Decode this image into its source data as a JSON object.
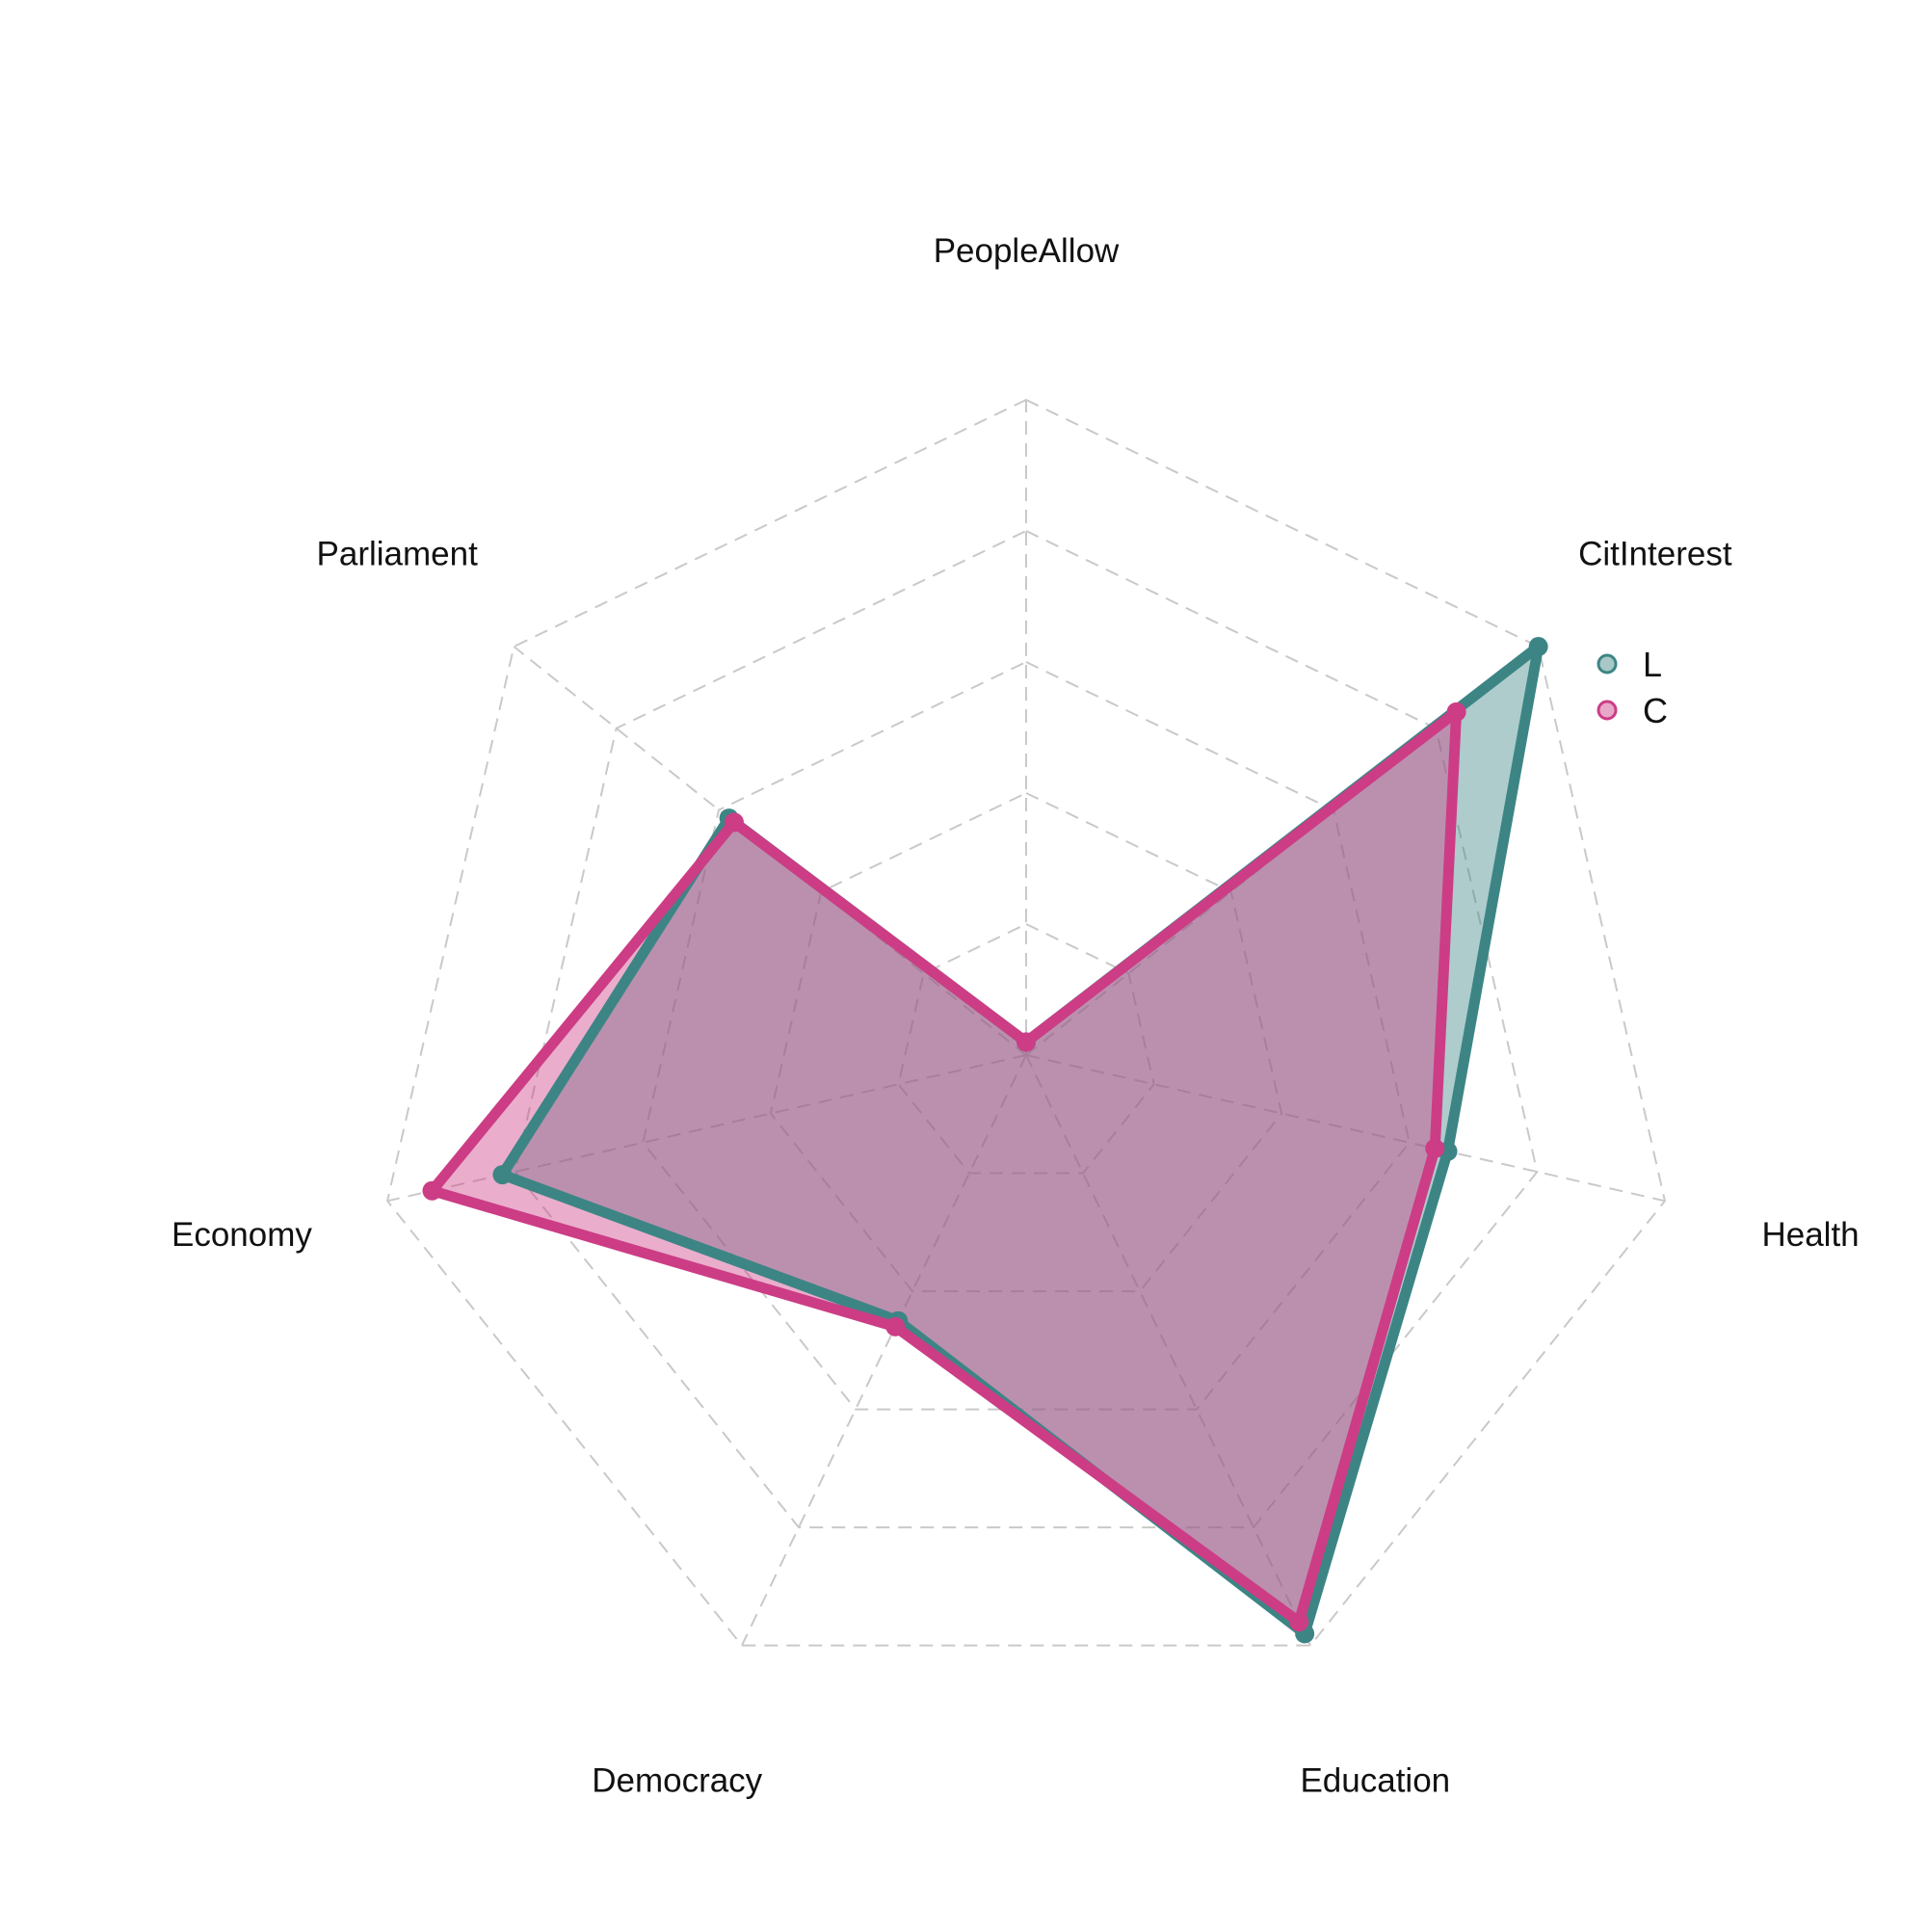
{
  "chart_data": {
    "type": "radar",
    "axes": [
      "PeopleAllow",
      "CitInterest",
      "Health",
      "Education",
      "Democracy",
      "Economy",
      "Parliament"
    ],
    "rmax": 1.0,
    "grid_levels": [
      0.2,
      0.4,
      0.6,
      0.8,
      1.0
    ],
    "grid": true,
    "legend_position": "right",
    "series": [
      {
        "name": "L",
        "values": [
          0.02,
          1.0,
          0.66,
          0.98,
          0.45,
          0.82,
          0.58
        ],
        "color": "#3d8585",
        "fill": "#3d8585",
        "fill_opacity": 0.42
      },
      {
        "name": "C",
        "values": [
          0.02,
          0.84,
          0.64,
          0.96,
          0.46,
          0.93,
          0.57
        ],
        "color": "#cc3d86",
        "fill": "#cc3d86",
        "fill_opacity": 0.42
      }
    ]
  }
}
